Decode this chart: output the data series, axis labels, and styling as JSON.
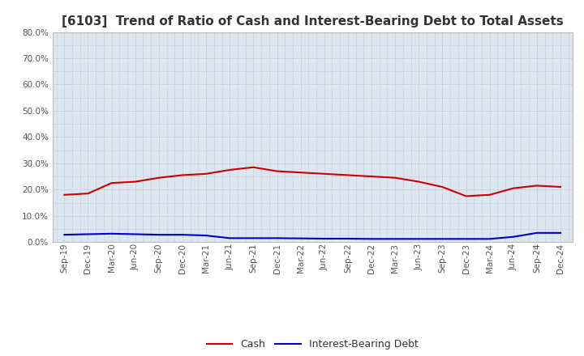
{
  "title": "[6103]  Trend of Ratio of Cash and Interest-Bearing Debt to Total Assets",
  "title_fontsize": 11,
  "title_color": "#333333",
  "plot_bg_color": "#dce6f0",
  "fig_bg_color": "#ffffff",
  "grid_color": "#aaaaaa",
  "x_labels": [
    "Sep-19",
    "Dec-19",
    "Mar-20",
    "Jun-20",
    "Sep-20",
    "Dec-20",
    "Mar-21",
    "Jun-21",
    "Sep-21",
    "Dec-21",
    "Mar-22",
    "Jun-22",
    "Sep-22",
    "Dec-22",
    "Mar-23",
    "Jun-23",
    "Sep-23",
    "Dec-23",
    "Mar-24",
    "Jun-24",
    "Sep-24",
    "Dec-24"
  ],
  "cash": [
    18.0,
    18.5,
    22.5,
    23.0,
    24.5,
    25.5,
    26.0,
    27.5,
    28.5,
    27.0,
    26.5,
    26.0,
    25.5,
    25.0,
    24.5,
    23.0,
    21.0,
    17.5,
    18.0,
    20.5,
    21.5,
    21.0
  ],
  "interest_bearing_debt": [
    2.8,
    3.0,
    3.2,
    3.0,
    2.8,
    2.8,
    2.5,
    1.5,
    1.5,
    1.5,
    1.4,
    1.3,
    1.3,
    1.2,
    1.2,
    1.2,
    1.2,
    1.2,
    1.2,
    2.0,
    3.5,
    3.5
  ],
  "cash_color": "#cc0000",
  "debt_color": "#0000cc",
  "ylim": [
    0.0,
    80.0
  ],
  "yticks": [
    0.0,
    10.0,
    20.0,
    30.0,
    40.0,
    50.0,
    60.0,
    70.0,
    80.0
  ],
  "legend_cash": "Cash",
  "legend_debt": "Interest-Bearing Debt",
  "line_width": 1.5,
  "tick_label_fontsize": 7.5,
  "tick_label_color": "#555555"
}
